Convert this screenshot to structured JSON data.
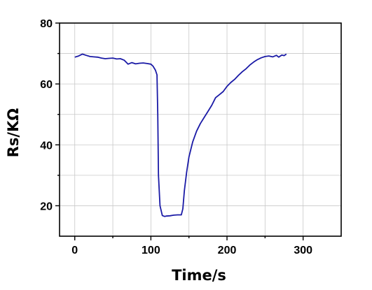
{
  "chart_data": {
    "type": "line",
    "title": "",
    "xlabel": "Time/s",
    "ylabel": "Rs/KΩ",
    "xlim": [
      -20,
      350
    ],
    "ylim": [
      10,
      80
    ],
    "x_ticks": [
      0,
      100,
      200,
      300
    ],
    "y_ticks": [
      20,
      40,
      60,
      80
    ],
    "grid": true,
    "legend": "none",
    "colors": {
      "line": "#1a1aa6",
      "grid": "#c8c8c8",
      "axis": "#000000"
    },
    "series": [
      {
        "x": [
          0,
          5,
          10,
          15,
          20,
          25,
          30,
          35,
          40,
          45,
          50,
          55,
          60,
          65,
          70,
          75,
          80,
          85,
          90,
          95,
          100,
          103,
          106,
          108,
          109,
          110,
          112,
          115,
          118,
          120,
          125,
          130,
          135,
          140,
          142,
          144,
          147,
          150,
          155,
          160,
          165,
          170,
          175,
          180,
          185,
          190,
          195,
          200,
          205,
          210,
          215,
          220,
          225,
          230,
          235,
          240,
          245,
          250,
          255,
          260,
          265,
          268,
          272,
          275,
          278
        ],
        "y": [
          68.8,
          69.2,
          69.8,
          69.4,
          69.0,
          68.9,
          68.8,
          68.5,
          68.3,
          68.4,
          68.5,
          68.2,
          68.3,
          67.8,
          66.5,
          67.0,
          66.6,
          66.8,
          66.9,
          66.7,
          66.5,
          65.8,
          64.5,
          63.0,
          50.0,
          30.0,
          20.0,
          16.8,
          16.5,
          16.6,
          16.7,
          16.9,
          17.0,
          17.0,
          19.0,
          25.0,
          31.0,
          36.0,
          41.0,
          44.5,
          47.0,
          49.0,
          51.0,
          53.0,
          55.5,
          56.5,
          57.5,
          59.2,
          60.5,
          61.5,
          62.8,
          64.0,
          65.0,
          66.2,
          67.2,
          68.0,
          68.6,
          69.0,
          69.2,
          68.9,
          69.4,
          68.8,
          69.5,
          69.3,
          69.8
        ]
      }
    ]
  }
}
